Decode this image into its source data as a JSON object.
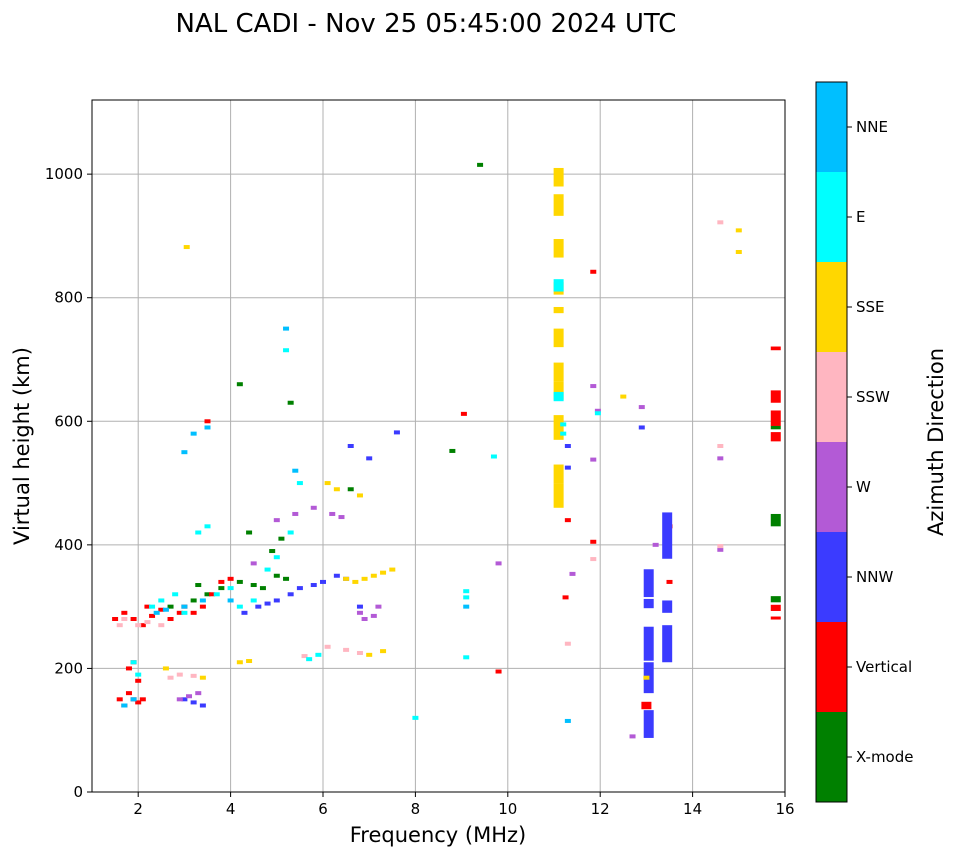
{
  "chart_data": {
    "type": "scatter",
    "title": "NAL CADI - Nov 25 05:45:00 2024 UTC",
    "xlabel": "Frequency (MHz)",
    "ylabel": "Virtual height (km)",
    "xlim": [
      1,
      16
    ],
    "ylim": [
      0,
      1120
    ],
    "xticks": [
      2,
      4,
      6,
      8,
      10,
      12,
      14,
      16
    ],
    "yticks": [
      0,
      200,
      400,
      600,
      800,
      1000
    ],
    "grid": true,
    "colorbar": {
      "label": "Azimuth Direction",
      "categories": [
        {
          "name": "X-mode",
          "color": "#008000"
        },
        {
          "name": "Vertical",
          "color": "#ff0000"
        },
        {
          "name": "NNW",
          "color": "#3b3bff"
        },
        {
          "name": "W",
          "color": "#b35ad6"
        },
        {
          "name": "SSW",
          "color": "#ffb6c1"
        },
        {
          "name": "SSE",
          "color": "#ffd700"
        },
        {
          "name": "E",
          "color": "#00ffff"
        },
        {
          "name": "NNE",
          "color": "#00bfff"
        }
      ]
    },
    "series": [
      {
        "name": "X-mode",
        "points": [
          [
            2.7,
            300
          ],
          [
            3.2,
            310
          ],
          [
            3.8,
            330
          ],
          [
            4.2,
            340
          ],
          [
            4.5,
            335
          ],
          [
            4.7,
            330
          ],
          [
            5.0,
            350
          ],
          [
            5.2,
            345
          ],
          [
            4.9,
            390
          ],
          [
            5.1,
            410
          ],
          [
            4.4,
            420
          ],
          [
            5.3,
            630
          ],
          [
            4.2,
            660
          ],
          [
            9.4,
            1015
          ],
          [
            8.8,
            552
          ],
          [
            6.6,
            490
          ],
          [
            3.3,
            335
          ],
          [
            3.5,
            320
          ]
        ],
        "bars": [
          [
            15.8,
            440,
            20
          ],
          [
            15.8,
            312,
            10
          ],
          [
            15.8,
            590,
            6
          ]
        ]
      },
      {
        "name": "Vertical",
        "points": [
          [
            1.6,
            150
          ],
          [
            1.7,
            140
          ],
          [
            1.8,
            160
          ],
          [
            1.9,
            150
          ],
          [
            2.0,
            145
          ],
          [
            2.1,
            150
          ],
          [
            1.8,
            200
          ],
          [
            1.9,
            210
          ],
          [
            2.0,
            180
          ],
          [
            1.5,
            280
          ],
          [
            1.7,
            290
          ],
          [
            1.9,
            280
          ],
          [
            2.1,
            270
          ],
          [
            2.3,
            285
          ],
          [
            2.5,
            295
          ],
          [
            2.7,
            280
          ],
          [
            2.9,
            290
          ],
          [
            3.0,
            300
          ],
          [
            3.2,
            290
          ],
          [
            3.4,
            300
          ],
          [
            3.6,
            320
          ],
          [
            3.8,
            340
          ],
          [
            4.0,
            345
          ],
          [
            2.2,
            300
          ],
          [
            3.5,
            600
          ],
          [
            9.05,
            612
          ],
          [
            11.3,
            440
          ],
          [
            11.85,
            842
          ],
          [
            11.25,
            315
          ],
          [
            11.85,
            405
          ],
          [
            13.5,
            340
          ],
          [
            13.5,
            430
          ],
          [
            9.8,
            195
          ]
        ],
        "bars": [
          [
            15.8,
            718,
            6
          ],
          [
            15.8,
            640,
            20
          ],
          [
            15.8,
            605,
            25
          ],
          [
            15.8,
            575,
            15
          ],
          [
            15.8,
            298,
            10
          ],
          [
            15.8,
            282,
            4
          ],
          [
            13.0,
            140,
            12
          ]
        ]
      },
      {
        "name": "NNW",
        "points": [
          [
            3.0,
            150
          ],
          [
            3.2,
            145
          ],
          [
            3.4,
            140
          ],
          [
            4.3,
            290
          ],
          [
            4.6,
            300
          ],
          [
            4.8,
            305
          ],
          [
            5.0,
            310
          ],
          [
            5.3,
            320
          ],
          [
            5.5,
            330
          ],
          [
            5.8,
            335
          ],
          [
            6.0,
            340
          ],
          [
            6.3,
            350
          ],
          [
            6.5,
            345
          ],
          [
            6.8,
            300
          ],
          [
            6.6,
            560
          ],
          [
            7.0,
            540
          ],
          [
            7.6,
            582
          ],
          [
            11.3,
            560
          ],
          [
            11.3,
            525
          ],
          [
            12.9,
            590
          ]
        ],
        "bars": [
          [
            13.05,
            338,
            45
          ],
          [
            13.05,
            305,
            15
          ],
          [
            13.05,
            240,
            55
          ],
          [
            13.05,
            185,
            50
          ],
          [
            13.05,
            110,
            45
          ],
          [
            13.45,
            415,
            75
          ],
          [
            13.45,
            300,
            20
          ],
          [
            13.45,
            240,
            60
          ]
        ]
      },
      {
        "name": "W",
        "points": [
          [
            2.9,
            150
          ],
          [
            3.1,
            155
          ],
          [
            3.3,
            160
          ],
          [
            4.5,
            370
          ],
          [
            5.0,
            440
          ],
          [
            5.4,
            450
          ],
          [
            5.8,
            460
          ],
          [
            6.2,
            450
          ],
          [
            6.4,
            445
          ],
          [
            6.8,
            290
          ],
          [
            6.9,
            280
          ],
          [
            7.1,
            285
          ],
          [
            7.2,
            300
          ],
          [
            9.8,
            370
          ],
          [
            11.85,
            538
          ],
          [
            11.85,
            657
          ],
          [
            11.95,
            617
          ],
          [
            12.9,
            623
          ],
          [
            13.2,
            400
          ],
          [
            14.6,
            540
          ],
          [
            14.6,
            392
          ],
          [
            12.7,
            90
          ],
          [
            11.4,
            353
          ]
        ]
      },
      {
        "name": "SSW",
        "points": [
          [
            1.6,
            270
          ],
          [
            1.7,
            280
          ],
          [
            2.0,
            270
          ],
          [
            2.2,
            275
          ],
          [
            2.5,
            270
          ],
          [
            2.7,
            185
          ],
          [
            2.9,
            190
          ],
          [
            3.2,
            188
          ],
          [
            5.6,
            220
          ],
          [
            6.1,
            235
          ],
          [
            6.5,
            230
          ],
          [
            6.8,
            225
          ],
          [
            11.3,
            240
          ],
          [
            11.85,
            377
          ],
          [
            14.6,
            560
          ],
          [
            14.6,
            922
          ],
          [
            14.6,
            398
          ]
        ]
      },
      {
        "name": "SSE",
        "points": [
          [
            3.05,
            882
          ],
          [
            3.4,
            185
          ],
          [
            4.2,
            210
          ],
          [
            4.4,
            212
          ],
          [
            6.1,
            500
          ],
          [
            6.3,
            490
          ],
          [
            6.5,
            345
          ],
          [
            6.7,
            340
          ],
          [
            6.9,
            345
          ],
          [
            7.1,
            350
          ],
          [
            7.3,
            355
          ],
          [
            7.5,
            360
          ],
          [
            7.0,
            222
          ],
          [
            7.3,
            228
          ],
          [
            12.5,
            640
          ],
          [
            13.0,
            185
          ],
          [
            15.0,
            909
          ],
          [
            15.0,
            874
          ],
          [
            2.6,
            200
          ],
          [
            6.8,
            480
          ]
        ],
        "bars": [
          [
            11.1,
            995,
            30
          ],
          [
            11.1,
            950,
            35
          ],
          [
            11.1,
            880,
            30
          ],
          [
            11.1,
            815,
            20
          ],
          [
            11.1,
            780,
            10
          ],
          [
            11.1,
            735,
            30
          ],
          [
            11.1,
            680,
            30
          ],
          [
            11.1,
            650,
            30
          ],
          [
            11.1,
            590,
            40
          ],
          [
            11.1,
            515,
            30
          ],
          [
            11.1,
            480,
            40
          ]
        ]
      },
      {
        "name": "E",
        "points": [
          [
            1.9,
            210
          ],
          [
            2.0,
            190
          ],
          [
            2.3,
            300
          ],
          [
            2.5,
            310
          ],
          [
            2.8,
            320
          ],
          [
            3.0,
            290
          ],
          [
            3.3,
            420
          ],
          [
            3.5,
            430
          ],
          [
            3.7,
            320
          ],
          [
            4.0,
            330
          ],
          [
            4.2,
            300
          ],
          [
            4.5,
            310
          ],
          [
            4.8,
            360
          ],
          [
            5.0,
            380
          ],
          [
            5.3,
            420
          ],
          [
            5.7,
            215
          ],
          [
            5.9,
            222
          ],
          [
            5.5,
            500
          ],
          [
            5.2,
            715
          ],
          [
            9.1,
            325
          ],
          [
            9.1,
            315
          ],
          [
            9.1,
            218
          ],
          [
            9.7,
            543
          ],
          [
            8.0,
            120
          ],
          [
            11.95,
            613
          ],
          [
            11.2,
            595
          ],
          [
            11.2,
            580
          ]
        ],
        "bars": [
          [
            11.1,
            640,
            15
          ],
          [
            11.1,
            820,
            20
          ]
        ]
      },
      {
        "name": "NNE",
        "points": [
          [
            1.7,
            140
          ],
          [
            1.9,
            150
          ],
          [
            2.4,
            290
          ],
          [
            2.6,
            295
          ],
          [
            3.0,
            300
          ],
          [
            3.4,
            310
          ],
          [
            3.0,
            550
          ],
          [
            3.5,
            590
          ],
          [
            3.2,
            580
          ],
          [
            5.2,
            750
          ],
          [
            5.4,
            520
          ],
          [
            4.0,
            310
          ],
          [
            11.3,
            115
          ],
          [
            9.1,
            300
          ]
        ]
      }
    ]
  }
}
